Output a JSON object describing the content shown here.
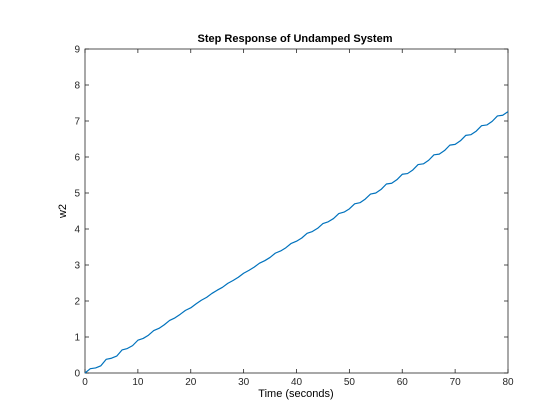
{
  "chart_data": {
    "type": "line",
    "title": "Step Response of Undamped System",
    "xlabel": "Time (seconds)",
    "ylabel": "w2",
    "xlim": [
      0,
      80
    ],
    "ylim": [
      0,
      9
    ],
    "xticks": [
      0,
      10,
      20,
      30,
      40,
      50,
      60,
      70,
      80
    ],
    "yticks": [
      0,
      1,
      2,
      3,
      4,
      5,
      6,
      7,
      8,
      9
    ],
    "grid": false,
    "legend": "none",
    "series": [
      {
        "color": "#0072BD",
        "x": [
          0,
          1,
          2,
          3,
          4,
          5,
          6,
          7,
          8,
          9,
          10,
          11,
          12,
          13,
          14,
          15,
          16,
          17,
          18,
          19,
          20,
          21,
          22,
          23,
          24,
          25,
          26,
          27,
          28,
          29,
          30,
          31,
          32,
          33,
          34,
          35,
          36,
          37,
          38,
          39,
          40,
          41,
          42,
          43,
          44,
          45,
          46,
          47,
          48,
          49,
          50,
          51,
          52,
          53,
          54,
          55,
          56,
          57,
          58,
          59,
          60,
          61,
          62,
          63,
          64,
          65,
          66,
          67,
          68,
          69,
          70,
          71,
          72,
          73,
          74,
          75,
          76,
          77,
          78,
          79,
          80
        ],
        "y": [
          0.0,
          0.12,
          0.14,
          0.2,
          0.38,
          0.41,
          0.47,
          0.64,
          0.68,
          0.76,
          0.91,
          0.96,
          1.05,
          1.18,
          1.24,
          1.34,
          1.46,
          1.53,
          1.63,
          1.74,
          1.81,
          1.92,
          2.02,
          2.1,
          2.21,
          2.3,
          2.38,
          2.49,
          2.57,
          2.66,
          2.77,
          2.85,
          2.94,
          3.05,
          3.12,
          3.21,
          3.33,
          3.39,
          3.48,
          3.6,
          3.66,
          3.75,
          3.88,
          3.93,
          4.02,
          4.15,
          4.2,
          4.29,
          4.43,
          4.47,
          4.56,
          4.7,
          4.73,
          4.83,
          4.97,
          5.0,
          5.1,
          5.25,
          5.27,
          5.37,
          5.52,
          5.54,
          5.64,
          5.79,
          5.81,
          5.91,
          6.06,
          6.08,
          6.18,
          6.33,
          6.35,
          6.45,
          6.6,
          6.62,
          6.72,
          6.87,
          6.89,
          6.99,
          7.14,
          7.16,
          7.26
        ]
      }
    ]
  }
}
